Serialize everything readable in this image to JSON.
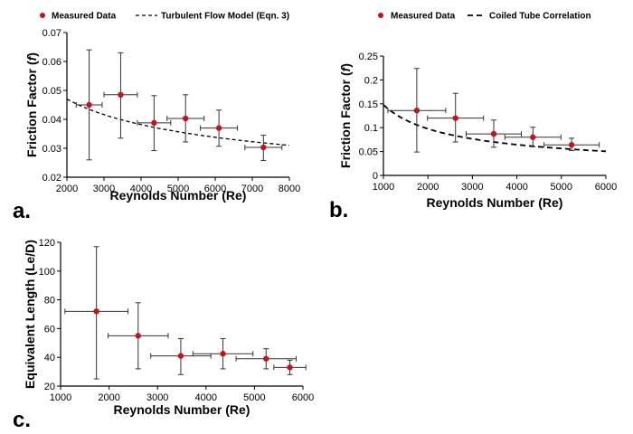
{
  "chart_data": [
    {
      "id": "a",
      "type": "scatter",
      "panel_label": "a.",
      "xlabel": "Reynolds Number (Re)",
      "ylabel_prefix": "Friction Factor (",
      "ylabel_var": "f",
      "ylabel_suffix": ")",
      "xlim": [
        2000,
        8000
      ],
      "ylim": [
        0.02,
        0.07
      ],
      "xticks": [
        "2000",
        "3000",
        "4000",
        "5000",
        "6000",
        "7000",
        "8000"
      ],
      "yticks": [
        "0.02",
        "0.03",
        "0.04",
        "0.05",
        "0.06",
        "0.07"
      ],
      "legend": {
        "points": "Measured Data",
        "line": "Turbulent Flow Model (Eqn. 3)",
        "line_style": "dashed"
      },
      "points": [
        {
          "x": 2600,
          "y": 0.045,
          "xerr": 350,
          "ylo": 0.026,
          "yhi": 0.064
        },
        {
          "x": 3450,
          "y": 0.0485,
          "xerr": 450,
          "ylo": 0.0335,
          "yhi": 0.063
        },
        {
          "x": 4350,
          "y": 0.0388,
          "xerr": 450,
          "ylo": 0.0292,
          "yhi": 0.0482
        },
        {
          "x": 5200,
          "y": 0.0403,
          "xerr": 500,
          "ylo": 0.0322,
          "yhi": 0.0485
        },
        {
          "x": 6100,
          "y": 0.037,
          "xerr": 500,
          "ylo": 0.0307,
          "yhi": 0.0432
        },
        {
          "x": 7300,
          "y": 0.0303,
          "xerr": 500,
          "ylo": 0.0258,
          "yhi": 0.0345
        }
      ],
      "model": {
        "x0": 2000,
        "y0": 0.047,
        "exponent": 0.3
      }
    },
    {
      "id": "b",
      "type": "scatter",
      "panel_label": "b.",
      "xlabel": "Reynolds Number (Re)",
      "ylabel_prefix": "Friction Factor (",
      "ylabel_var": "f",
      "ylabel_suffix": ")",
      "xlim": [
        1000,
        6000
      ],
      "ylim": [
        0,
        0.25
      ],
      "xticks": [
        "1000",
        "2000",
        "3000",
        "4000",
        "5000",
        "6000"
      ],
      "yticks": [
        "0",
        "0.05",
        "0.1",
        "0.15",
        "0.2",
        "0.25"
      ],
      "legend": {
        "points": "Measured Data",
        "line": "Coiled Tube Correlation",
        "line_style": "dashed"
      },
      "points": [
        {
          "x": 1750,
          "y": 0.136,
          "xerr": 650,
          "ylo": 0.049,
          "yhi": 0.224
        },
        {
          "x": 2620,
          "y": 0.12,
          "xerr": 630,
          "ylo": 0.07,
          "yhi": 0.172
        },
        {
          "x": 3480,
          "y": 0.087,
          "xerr": 620,
          "ylo": 0.059,
          "yhi": 0.116
        },
        {
          "x": 4360,
          "y": 0.08,
          "xerr": 630,
          "ylo": 0.06,
          "yhi": 0.101
        },
        {
          "x": 5230,
          "y": 0.064,
          "xerr": 620,
          "ylo": 0.052,
          "yhi": 0.078
        }
      ],
      "model": {
        "x0": 1000,
        "y0": 0.148,
        "exponent": 0.6
      }
    },
    {
      "id": "c",
      "type": "scatter",
      "panel_label": "c.",
      "xlabel": "Reynolds Number (Re)",
      "ylabel": "Equivalent Length (Le/D)",
      "xlim": [
        1000,
        6000
      ],
      "ylim": [
        20,
        120
      ],
      "xticks": [
        "1000",
        "2000",
        "3000",
        "4000",
        "5000",
        "6000"
      ],
      "yticks": [
        "20",
        "40",
        "60",
        "80",
        "100",
        "120"
      ],
      "points": [
        {
          "x": 1740,
          "y": 72,
          "xerr": 650,
          "ylo": 25,
          "yhi": 117
        },
        {
          "x": 2600,
          "y": 55,
          "xerr": 620,
          "ylo": 32,
          "yhi": 78
        },
        {
          "x": 3480,
          "y": 41,
          "xerr": 620,
          "ylo": 28,
          "yhi": 53
        },
        {
          "x": 4350,
          "y": 42.5,
          "xerr": 620,
          "ylo": 32,
          "yhi": 53
        },
        {
          "x": 5240,
          "y": 39,
          "xerr": 620,
          "ylo": 32,
          "yhi": 46
        },
        {
          "x": 5730,
          "y": 33,
          "xerr": 330,
          "ylo": 28,
          "yhi": 38
        }
      ]
    }
  ]
}
